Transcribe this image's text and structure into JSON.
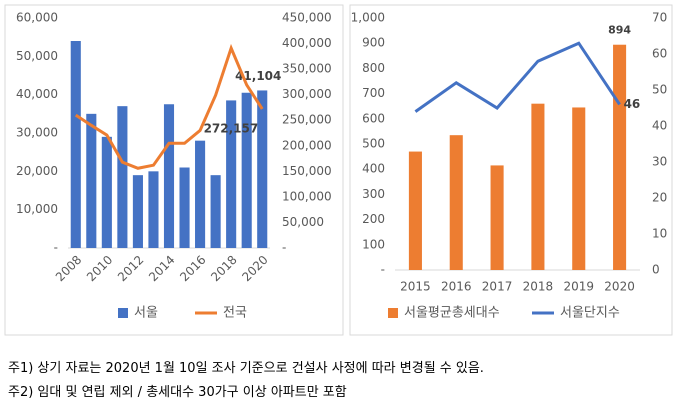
{
  "chart_data": [
    {
      "type": "bar-line",
      "categories": [
        "2008",
        null,
        "2010",
        null,
        "2012",
        null,
        "2014",
        null,
        "2016",
        null,
        "2018",
        null,
        "2020"
      ],
      "series": [
        {
          "name": "서울",
          "color": "#4472c4",
          "type": "bar",
          "values": [
            54000,
            35000,
            29000,
            37000,
            19000,
            20000,
            37500,
            21000,
            28000,
            19000,
            38500,
            40500,
            41104
          ],
          "value_labels": [
            null,
            null,
            null,
            null,
            null,
            null,
            null,
            null,
            null,
            null,
            null,
            null,
            "41,104"
          ]
        },
        {
          "name": "전국",
          "color": "#ed7d31",
          "type": "line",
          "axis": "y2",
          "values": [
            260000,
            240000,
            221000,
            168000,
            156000,
            162000,
            205000,
            205000,
            230000,
            299000,
            391000,
            319000,
            272157
          ],
          "value_labels": [
            null,
            null,
            null,
            null,
            null,
            null,
            null,
            null,
            null,
            null,
            null,
            null,
            "272,157"
          ]
        }
      ],
      "ylim": [
        0,
        60000
      ],
      "yticks": [
        {
          "value": 0,
          "label": "-"
        },
        {
          "value": 10000,
          "label": "10,000"
        },
        {
          "value": 20000,
          "label": "20,000"
        },
        {
          "value": 30000,
          "label": "30,000"
        },
        {
          "value": 40000,
          "label": "40,000"
        },
        {
          "value": 50000,
          "label": "50,000"
        },
        {
          "value": 60000,
          "label": "60,000"
        }
      ],
      "y2lim": [
        0,
        450000
      ],
      "y2ticks": [
        {
          "value": 0,
          "label": "-"
        },
        {
          "value": 50000,
          "label": "50,000"
        },
        {
          "value": 100000,
          "label": "100,000"
        },
        {
          "value": 150000,
          "label": "150,000"
        },
        {
          "value": 200000,
          "label": "200,000"
        },
        {
          "value": 250000,
          "label": "250,000"
        },
        {
          "value": 300000,
          "label": "300,000"
        },
        {
          "value": 350000,
          "label": "350,000"
        },
        {
          "value": 400000,
          "label": "400,000"
        },
        {
          "value": 450000,
          "label": "450,000"
        }
      ],
      "grid": false
    },
    {
      "type": "bar-line",
      "categories": [
        "2015",
        "2016",
        "2017",
        "2018",
        "2019",
        "2020"
      ],
      "series": [
        {
          "name": "서울평균총세대수",
          "color": "#ed7d31",
          "type": "bar",
          "values": [
            470,
            535,
            415,
            660,
            645,
            894
          ],
          "value_labels": [
            null,
            null,
            null,
            null,
            null,
            "894"
          ]
        },
        {
          "name": "서울단지수",
          "color": "#4472c4",
          "type": "line",
          "axis": "y2",
          "values": [
            44,
            52,
            45,
            58,
            63,
            46
          ],
          "value_labels": [
            null,
            null,
            null,
            null,
            null,
            "46"
          ]
        }
      ],
      "ylim": [
        0,
        1000
      ],
      "yticks": [
        {
          "value": 0,
          "label": "-"
        },
        100,
        200,
        300,
        400,
        500,
        600,
        700,
        800,
        900,
        {
          "value": 1000,
          "label": "1,000"
        }
      ],
      "y2lim": [
        0,
        70
      ],
      "y2ticks": [
        0,
        10,
        20,
        30,
        40,
        50,
        60,
        70
      ],
      "grid": false
    }
  ],
  "notes": [
    "주1) 상기 자료는 2020년 1월 10일 조사 기준으로 건설사 사정에 따라 변경될 수 있음.",
    "주2) 임대 및 연립 제외 / 총세대수 30가구 이상 아파트만 포함"
  ]
}
